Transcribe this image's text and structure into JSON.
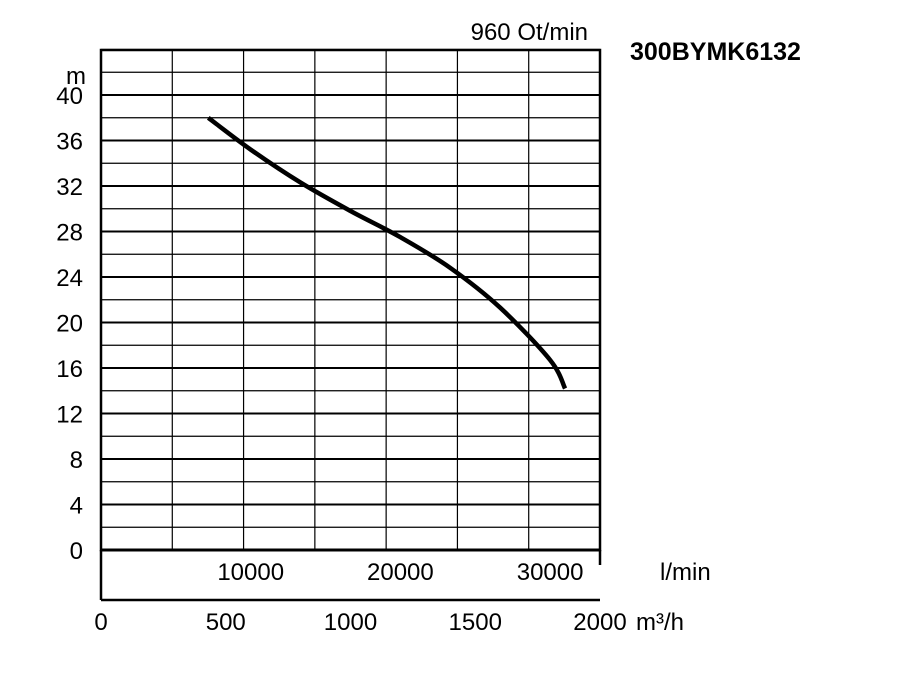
{
  "chart_data": {
    "type": "line",
    "title": "300BYMK6132",
    "subtitle": "960 Ot/min",
    "ylabel": "m",
    "x_lmin_label": "l/min",
    "x_m3h_label": "m³/h",
    "ylim": [
      0,
      40
    ],
    "yticks": [
      "0",
      "4",
      "8",
      "12",
      "16",
      "20",
      "24",
      "28",
      "32",
      "36",
      "40"
    ],
    "xlim_m3h": [
      0,
      2000
    ],
    "xticks_m3h": [
      "0",
      "500",
      "1000",
      "1500",
      "2000"
    ],
    "xticks_lmin": [
      "10000",
      "20000",
      "30000"
    ],
    "grid": true,
    "series": [
      {
        "x_m3h": [
          430,
          600,
          800,
          1000,
          1200,
          1400,
          1600,
          1800,
          1860
        ],
        "y_m": [
          38.0,
          35.2,
          32.3,
          29.8,
          27.5,
          24.8,
          21.3,
          16.7,
          14.2
        ]
      }
    ]
  }
}
